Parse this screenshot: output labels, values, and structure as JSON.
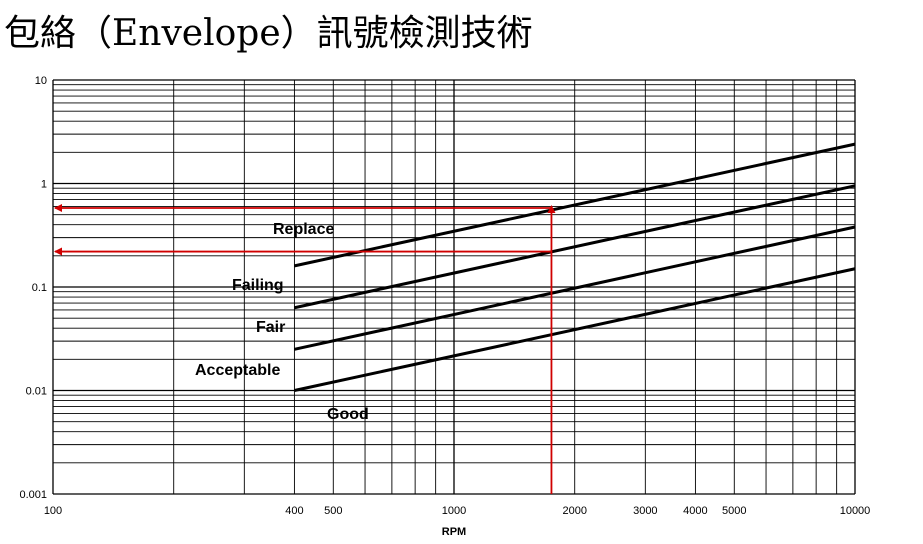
{
  "title": "包絡（Envelope）訊號檢測技術",
  "colors": {
    "grid": "#000000",
    "series": "#000000",
    "marker": "#d00000",
    "background": "#ffffff"
  },
  "chart_data": {
    "type": "line",
    "title": "包絡（Envelope）訊號檢測技術",
    "xlabel": "RPM",
    "ylabel": "",
    "xscale": "log",
    "yscale": "log",
    "xlim": [
      100,
      10000
    ],
    "ylim": [
      0.001,
      10
    ],
    "grid": true,
    "x_tick_labels": [
      "100",
      "400",
      "500",
      "1000",
      "2000",
      "3000",
      "4000",
      "5000",
      "10000"
    ],
    "y_tick_labels": [
      "0.001",
      "0.01",
      "0.1",
      "1",
      "10"
    ],
    "zones": [
      "Replace",
      "Failing",
      "Fair",
      "Acceptable",
      "Good"
    ],
    "series": [
      {
        "label": "Replace / Failing boundary",
        "x": [
          400,
          10000
        ],
        "y": [
          0.16,
          2.4
        ]
      },
      {
        "label": "Failing / Fair boundary",
        "x": [
          400,
          10000
        ],
        "y": [
          0.063,
          0.95
        ]
      },
      {
        "label": "Fair / Acceptable boundary",
        "x": [
          400,
          10000
        ],
        "y": [
          0.025,
          0.38
        ]
      },
      {
        "label": "Acceptable / Good boundary",
        "x": [
          400,
          10000
        ],
        "y": [
          0.01,
          0.15
        ]
      }
    ],
    "annotations": [
      {
        "type": "reference",
        "rpm": 1750,
        "levels": [
          0.58,
          0.22
        ]
      }
    ]
  }
}
